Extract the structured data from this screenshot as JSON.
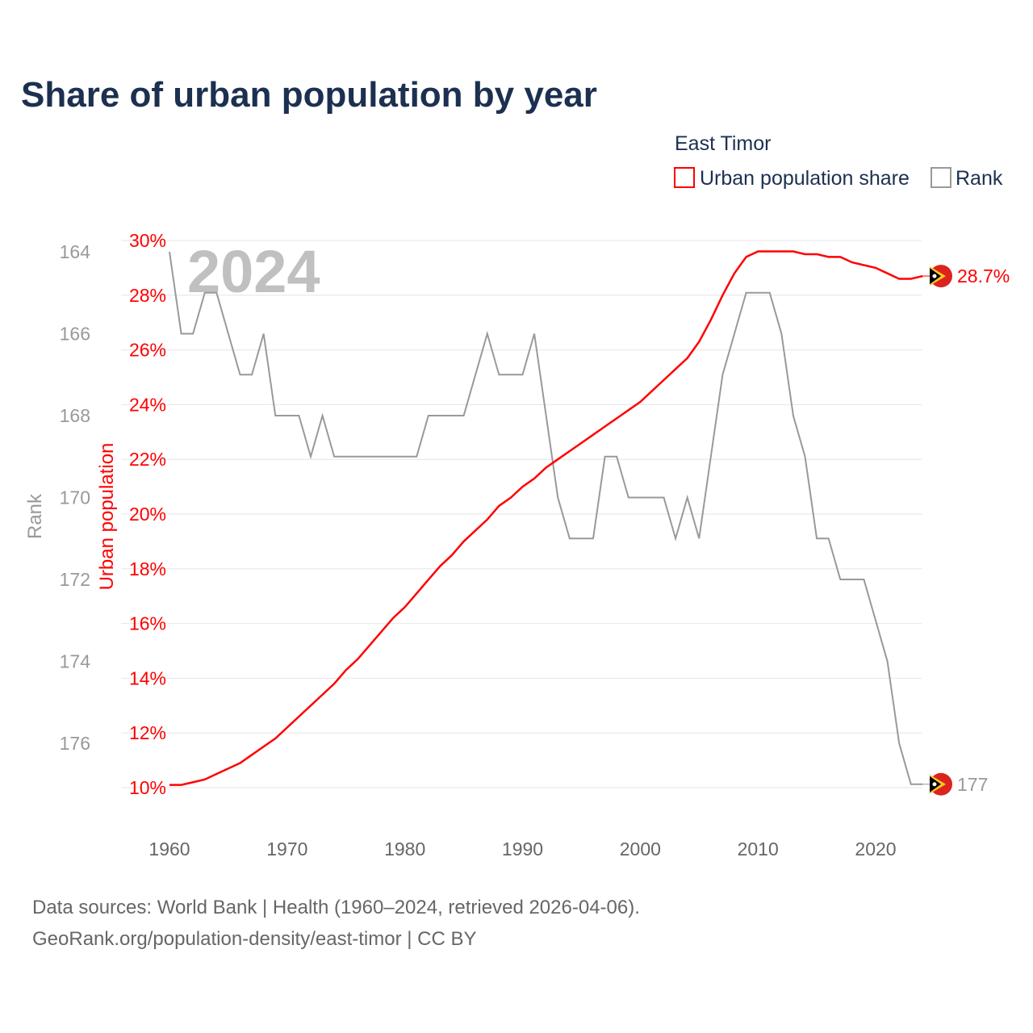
{
  "chart_data": {
    "type": "line",
    "title": "Share of urban population by year",
    "legend": {
      "title": "East Timor",
      "placement": "top-right",
      "entries": [
        "Urban population share",
        "Rank"
      ]
    },
    "ylabel_left_rank": "Rank",
    "ylabel_left_pct": "Urban population",
    "xlabel": "",
    "watermark_year": "2024",
    "x": [
      1960,
      1961,
      1962,
      1963,
      1964,
      1965,
      1966,
      1967,
      1968,
      1969,
      1970,
      1971,
      1972,
      1973,
      1974,
      1975,
      1976,
      1977,
      1978,
      1979,
      1980,
      1981,
      1982,
      1983,
      1984,
      1985,
      1986,
      1987,
      1988,
      1989,
      1990,
      1991,
      1992,
      1993,
      1994,
      1995,
      1996,
      1997,
      1998,
      1999,
      2000,
      2001,
      2002,
      2003,
      2004,
      2005,
      2006,
      2007,
      2008,
      2009,
      2010,
      2011,
      2012,
      2013,
      2014,
      2015,
      2016,
      2017,
      2018,
      2019,
      2020,
      2021,
      2022,
      2023,
      2024
    ],
    "xlim": [
      1960,
      2024
    ],
    "x_ticks": [
      "1960",
      "1970",
      "1980",
      "1990",
      "2000",
      "2010",
      "2020"
    ],
    "series": [
      {
        "name": "Urban population share",
        "color": "#ff0000",
        "unit": "%",
        "ylim": [
          10,
          30
        ],
        "values": [
          10.1,
          10.1,
          10.2,
          10.3,
          10.5,
          10.7,
          10.9,
          11.2,
          11.5,
          11.8,
          12.2,
          12.6,
          13.0,
          13.4,
          13.8,
          14.3,
          14.7,
          15.2,
          15.7,
          16.2,
          16.6,
          17.1,
          17.6,
          18.1,
          18.5,
          19.0,
          19.4,
          19.8,
          20.3,
          20.6,
          21.0,
          21.3,
          21.7,
          22.0,
          22.3,
          22.6,
          22.9,
          23.2,
          23.5,
          23.8,
          24.1,
          24.5,
          24.9,
          25.3,
          25.7,
          26.3,
          27.1,
          28.0,
          28.8,
          29.4,
          29.6,
          29.6,
          29.6,
          29.6,
          29.5,
          29.5,
          29.4,
          29.4,
          29.2,
          29.1,
          29.0,
          28.8,
          28.6,
          28.6,
          28.7
        ],
        "ticks": [
          "10%",
          "12%",
          "14%",
          "16%",
          "18%",
          "20%",
          "22%",
          "24%",
          "26%",
          "28%",
          "30%"
        ],
        "end_label": "28.7%"
      },
      {
        "name": "Rank",
        "color": "#999999",
        "ylim": [
          164,
          177
        ],
        "inverted": true,
        "values": [
          164,
          166,
          166,
          165,
          165,
          166,
          167,
          167,
          166,
          168,
          168,
          168,
          169,
          168,
          169,
          169,
          169,
          169,
          169,
          169,
          169,
          169,
          168,
          168,
          168,
          168,
          167,
          166,
          167,
          167,
          167,
          166,
          168,
          170,
          171,
          171,
          171,
          169,
          169,
          170,
          170,
          170,
          170,
          171,
          170,
          171,
          169,
          167,
          166,
          165,
          165,
          165,
          166,
          168,
          169,
          171,
          171,
          172,
          172,
          172,
          173,
          174,
          176,
          177,
          177
        ],
        "ticks": [
          "164",
          "166",
          "168",
          "170",
          "172",
          "174",
          "176"
        ],
        "end_label": "177"
      }
    ]
  },
  "footer": {
    "line1": "Data sources: World Bank | Health (1960–2024, retrieved 2026-04-06).",
    "line2": "GeoRank.org/population-density/east-timor | CC BY"
  }
}
